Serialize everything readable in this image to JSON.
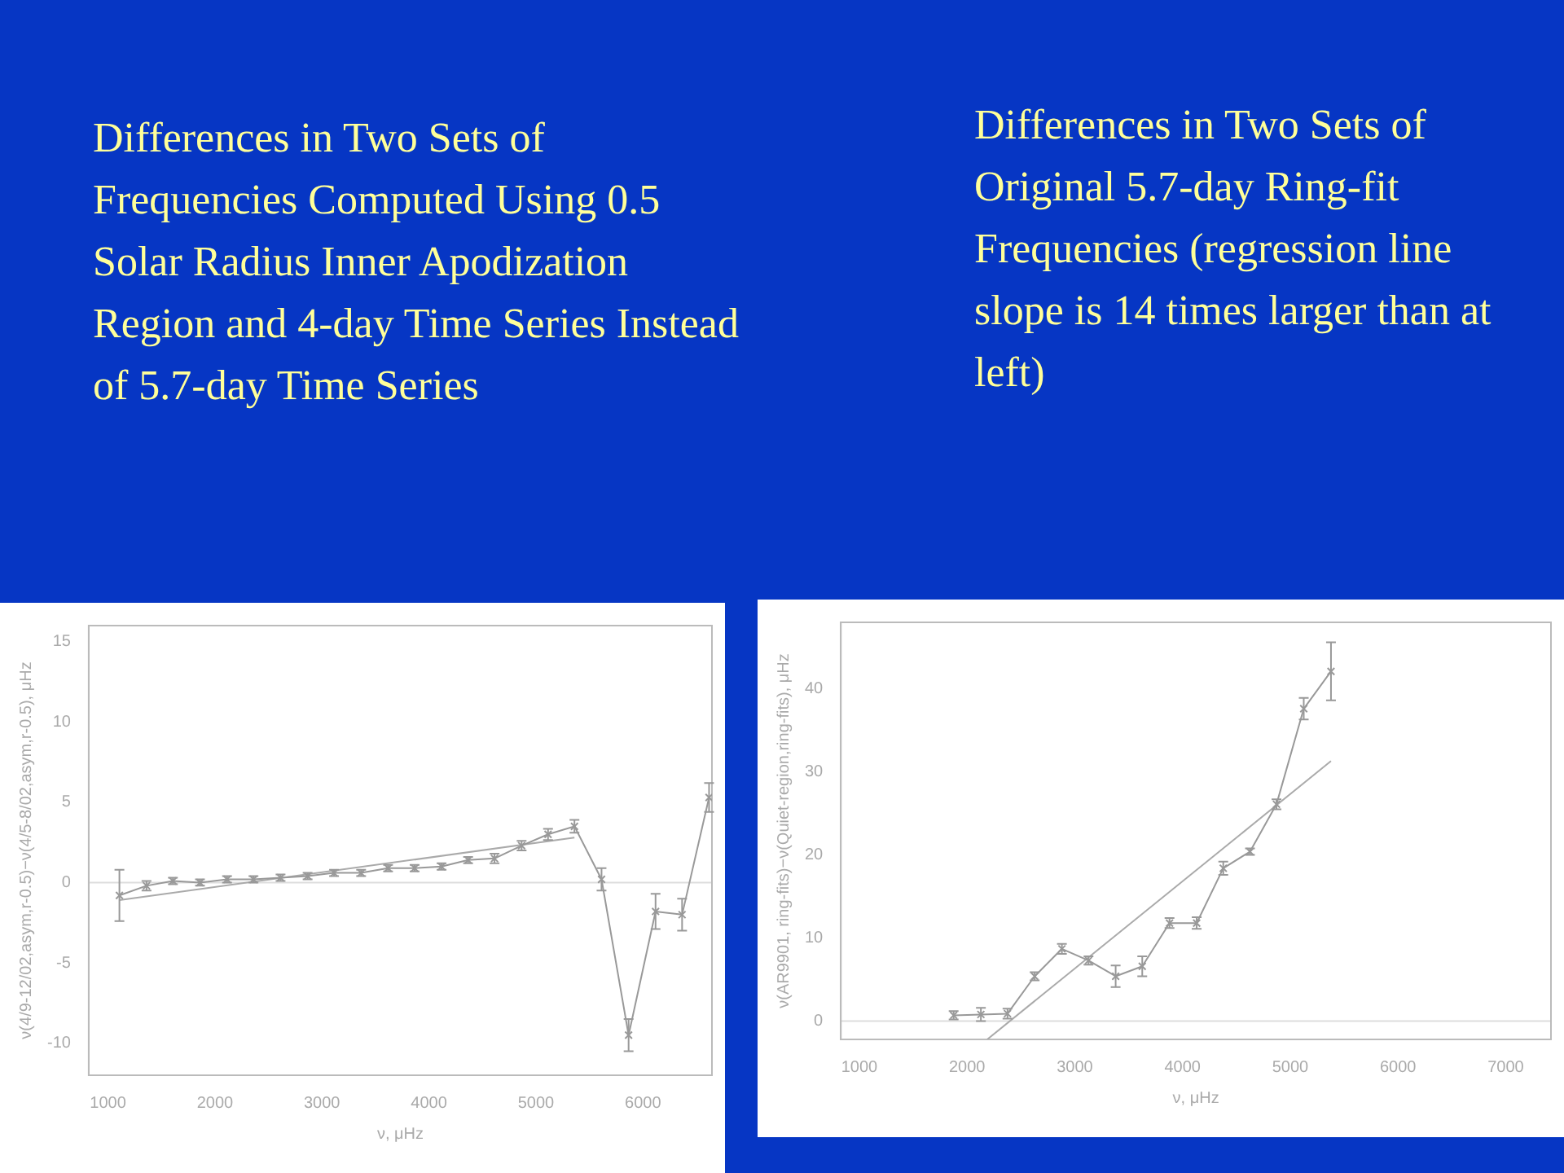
{
  "chart_data": [
    {
      "type": "line",
      "title": "Differences in Two Sets of Frequencies Computed Using 0.5 Solar Radius Inner Apodization Region and 4-day Time Series Instead of 5.7-day Time Series",
      "xlabel": "ν, μHz",
      "ylabel": "ν(4/9-12/02,asym,r-0.5)−ν(4/5-8/02,asym,r-0.5), μHz",
      "x": [
        1107,
        1360,
        1607,
        1860,
        2113,
        2360,
        2613,
        2866,
        3113,
        3366,
        3618,
        3866,
        4118,
        4366,
        4613,
        4866,
        5113,
        5360,
        5613,
        5866,
        6118,
        6366,
        6618
      ],
      "series": [
        {
          "type": "line",
          "color": "#999999",
          "marker": "cross",
          "values": [
            -0.8,
            -0.2,
            0.1,
            0,
            0.2,
            0.2,
            0.3,
            0.4,
            0.6,
            0.6,
            0.9,
            0.9,
            1.0,
            1.4,
            1.5,
            2.3,
            3.0,
            3.5,
            0.2,
            -9.5,
            -1.8,
            -2.0,
            5.3
          ],
          "errors": [
            1.6,
            0.3,
            0.2,
            0.2,
            0.2,
            0.2,
            0.2,
            0.2,
            0.2,
            0.2,
            0.2,
            0.2,
            0.2,
            0.2,
            0.3,
            0.3,
            0.35,
            0.4,
            0.7,
            1.0,
            1.1,
            1.0,
            0.9
          ]
        },
        {
          "type": "line",
          "color": "#aaaaaa",
          "marker": "none",
          "x": [
            1107,
            5360
          ],
          "values": [
            -1.1,
            2.8
          ]
        }
      ],
      "ref_lines": [
        {
          "axis": "y",
          "value": 0,
          "color": "#dddddd"
        }
      ],
      "xlim": [
        820,
        6645
      ],
      "xticks": [
        1000,
        2000,
        3000,
        4000,
        5000,
        6000
      ],
      "ylim": [
        -12,
        16
      ],
      "yticks": [
        -10,
        -5,
        0,
        5,
        10,
        15
      ],
      "grid": false,
      "legend": false
    },
    {
      "type": "line",
      "title": "Differences in Two Sets of Original 5.7-day Ring-fit Frequencies (regression line slope is 14 times larger than at left)",
      "xlabel": "ν, μHz",
      "ylabel": "ν(AR9901, ring-fits)−ν(Quiet-region,ring-fits), μHz",
      "x": [
        1875,
        2128,
        2375,
        2627,
        2880,
        3127,
        3379,
        3626,
        3879,
        4131,
        4378,
        4626,
        4872,
        5125,
        5378
      ],
      "series": [
        {
          "type": "line",
          "color": "#999999",
          "marker": "cross",
          "values": [
            0.7,
            0.8,
            0.9,
            5.4,
            8.7,
            7.3,
            5.4,
            6.6,
            11.8,
            11.8,
            18.4,
            20.4,
            26.1,
            37.6,
            42.1
          ],
          "errors": [
            0.5,
            0.8,
            0.6,
            0.5,
            0.6,
            0.5,
            1.3,
            1.2,
            0.6,
            0.7,
            0.8,
            0.4,
            0.6,
            1.3,
            3.5
          ]
        },
        {
          "type": "line",
          "color": "#aaaaaa",
          "marker": "none",
          "x": [
            2187,
            5378
          ],
          "values": [
            -2.2,
            31.3
          ]
        }
      ],
      "ref_lines": [
        {
          "axis": "y",
          "value": 0,
          "color": "#dddddd"
        }
      ],
      "xlim": [
        828,
        7420
      ],
      "xticks": [
        1000,
        2000,
        3000,
        4000,
        5000,
        6000,
        7000
      ],
      "ylim": [
        -2.2,
        48
      ],
      "yticks": [
        0,
        10,
        20,
        30,
        40
      ],
      "grid": false,
      "legend": false
    }
  ]
}
